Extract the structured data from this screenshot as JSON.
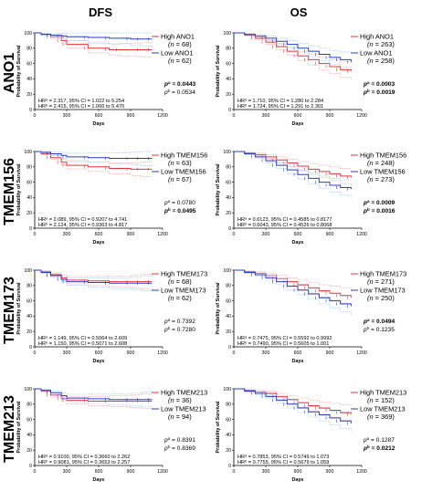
{
  "columns": [
    "DFS",
    "OS"
  ],
  "colors": {
    "high": "#e8333a",
    "low": "#2a3bd1",
    "high_ci": "#f2a0a4",
    "low_ci": "#8ec8f0"
  },
  "chart_data": [
    {
      "type": "line",
      "row": "ANO1",
      "column": "DFS",
      "xlabel": "Days",
      "ylabel": "Probability of Survival",
      "xlim": [
        0,
        1200
      ],
      "ylim": [
        0,
        100
      ],
      "xticks": [
        0,
        300,
        600,
        900,
        1200
      ],
      "yticks": [
        0,
        20,
        40,
        60,
        80,
        100
      ],
      "series": [
        {
          "name": "High ANO1",
          "n": "= 68",
          "x": [
            0,
            60,
            150,
            250,
            300,
            500,
            700,
            800,
            1000,
            1100
          ],
          "y": [
            100,
            98,
            95,
            90,
            85,
            80,
            78,
            78,
            78,
            78
          ]
        },
        {
          "name": "Low ANO1",
          "n": "= 62",
          "x": [
            0,
            60,
            150,
            250,
            300,
            500,
            700,
            900,
            1000,
            1100
          ],
          "y": [
            100,
            98,
            97,
            96,
            95,
            94,
            93,
            92,
            92,
            92
          ]
        }
      ],
      "stats": [
        "HRᵃ = 2.317, 95% CI = 1.022 to 5.254",
        "HRᵇ = 2.415, 95% CI = 1.066 to 5.470"
      ],
      "pa": "= 0.0443",
      "pb": "= 0.0534",
      "pa_bold": true,
      "pb_bold": false
    },
    {
      "type": "line",
      "row": "ANO1",
      "column": "OS",
      "xlabel": "Days",
      "ylabel": "Probability of Survival",
      "xlim": [
        0,
        1200
      ],
      "ylim": [
        0,
        100
      ],
      "xticks": [
        0,
        300,
        600,
        900,
        1200
      ],
      "yticks": [
        0,
        20,
        40,
        60,
        80,
        100
      ],
      "series": [
        {
          "name": "High ANO1",
          "n": "= 263",
          "x": [
            0,
            100,
            200,
            300,
            400,
            500,
            600,
            700,
            800,
            900,
            1000,
            1100
          ],
          "y": [
            100,
            97,
            93,
            88,
            82,
            76,
            70,
            65,
            60,
            56,
            52,
            50
          ]
        },
        {
          "name": "Low ANO1",
          "n": "= 258",
          "x": [
            0,
            100,
            200,
            300,
            400,
            500,
            600,
            700,
            800,
            900,
            1000,
            1100
          ],
          "y": [
            100,
            98,
            96,
            93,
            89,
            85,
            80,
            76,
            72,
            68,
            65,
            62
          ]
        }
      ],
      "stats": [
        "HRᵃ = 1.710, 95% CI = 1.280 to 2.284",
        "HRᵇ = 1.724, 95% CI = 1.291 to 2.301"
      ],
      "pa": "= 0.0003",
      "pb": "= 0.0019",
      "pa_bold": true,
      "pb_bold": true
    },
    {
      "type": "line",
      "row": "TMEM156",
      "column": "DFS",
      "xlabel": "Days",
      "ylabel": "Probability of Survival",
      "xlim": [
        0,
        1200
      ],
      "ylim": [
        0,
        100
      ],
      "xticks": [
        0,
        300,
        600,
        900,
        1200
      ],
      "yticks": [
        0,
        20,
        40,
        60,
        80,
        100
      ],
      "series": [
        {
          "name": "High TMEM156",
          "n": "= 63",
          "x": [
            0,
            60,
            150,
            250,
            300,
            500,
            700,
            900,
            1000,
            1100
          ],
          "y": [
            100,
            97,
            92,
            86,
            82,
            80,
            78,
            77,
            77,
            77
          ]
        },
        {
          "name": "Low TMEM156",
          "n": "= 67",
          "x": [
            0,
            60,
            150,
            250,
            300,
            500,
            700,
            900,
            1000,
            1100
          ],
          "y": [
            100,
            99,
            97,
            95,
            93,
            92,
            91,
            91,
            91,
            91
          ]
        }
      ],
      "stats": [
        "HRᵃ = 2.089, 95% CI = 0.9207 to 4.741",
        "HRᵇ = 2.124, 95% CI = 0.9363 to 4.817"
      ],
      "pa": "= 0.0780",
      "pb": "= 0.0495",
      "pa_bold": false,
      "pb_bold": true
    },
    {
      "type": "line",
      "row": "TMEM156",
      "column": "OS",
      "xlabel": "Days",
      "ylabel": "Probability of Survival",
      "xlim": [
        0,
        1200
      ],
      "ylim": [
        0,
        100
      ],
      "xticks": [
        0,
        300,
        600,
        900,
        1200
      ],
      "yticks": [
        0,
        20,
        40,
        60,
        80,
        100
      ],
      "series": [
        {
          "name": "High TMEM156",
          "n": "= 248",
          "x": [
            0,
            100,
            200,
            300,
            400,
            500,
            600,
            700,
            800,
            900,
            1000,
            1100
          ],
          "y": [
            100,
            98,
            96,
            93,
            89,
            85,
            81,
            77,
            74,
            71,
            68,
            66
          ]
        },
        {
          "name": "Low TMEM156",
          "n": "= 273",
          "x": [
            0,
            100,
            200,
            300,
            400,
            500,
            600,
            700,
            800,
            900,
            1000,
            1100
          ],
          "y": [
            100,
            97,
            93,
            88,
            82,
            76,
            70,
            65,
            60,
            56,
            53,
            51
          ]
        }
      ],
      "stats": [
        "HRᵃ = 0.6123, 95% CI = 0.4585 to 0.8177",
        "HRᵇ = 0.6043, 95% CI = 0.4526 to 0.8068"
      ],
      "pa": "= 0.0009",
      "pb": "= 0.0016",
      "pa_bold": true,
      "pb_bold": true
    },
    {
      "type": "line",
      "row": "TMEM173",
      "column": "DFS",
      "xlabel": "Days",
      "ylabel": "Probability of Survival",
      "xlim": [
        0,
        1200
      ],
      "ylim": [
        0,
        100
      ],
      "xticks": [
        0,
        300,
        600,
        900,
        1200
      ],
      "yticks": [
        0,
        20,
        40,
        60,
        80,
        100
      ],
      "series": [
        {
          "name": "High TMEM173",
          "n": "= 68",
          "x": [
            0,
            60,
            150,
            250,
            300,
            500,
            700,
            900,
            1000,
            1100
          ],
          "y": [
            100,
            98,
            94,
            90,
            87,
            86,
            85,
            85,
            85,
            85
          ]
        },
        {
          "name": "Low TMEM173",
          "n": "= 62",
          "x": [
            0,
            60,
            150,
            250,
            300,
            500,
            700,
            900,
            1000,
            1100
          ],
          "y": [
            100,
            97,
            93,
            88,
            85,
            84,
            83,
            83,
            83,
            83
          ]
        }
      ],
      "stats": [
        "HRᵃ = 1.149, 95% CI = 0.5064 to 2.609",
        "HRᵇ = 1.150, 95% CI = 0.5071 to 2.608"
      ],
      "pa": "= 0.7392",
      "pb": "= 0.7280",
      "pa_bold": false,
      "pb_bold": false
    },
    {
      "type": "line",
      "row": "TMEM173",
      "column": "OS",
      "xlabel": "Days",
      "ylabel": "Probability of Survival",
      "xlim": [
        0,
        1200
      ],
      "ylim": [
        0,
        100
      ],
      "xticks": [
        0,
        300,
        600,
        900,
        1200
      ],
      "yticks": [
        0,
        20,
        40,
        60,
        80,
        100
      ],
      "series": [
        {
          "name": "High TMEM173",
          "n": "= 271",
          "x": [
            0,
            100,
            200,
            300,
            400,
            500,
            600,
            700,
            800,
            900,
            1000,
            1100
          ],
          "y": [
            100,
            98,
            96,
            93,
            89,
            85,
            81,
            77,
            73,
            70,
            67,
            64
          ]
        },
        {
          "name": "Low TMEM173",
          "n": "= 250",
          "x": [
            0,
            100,
            200,
            300,
            400,
            500,
            600,
            700,
            800,
            900,
            1000,
            1100
          ],
          "y": [
            100,
            97,
            94,
            90,
            85,
            79,
            74,
            69,
            64,
            60,
            56,
            53
          ]
        }
      ],
      "stats": [
        "HRᵃ = 0.7475, 95% CI = 0.5592 to 0.9992",
        "HRᵇ = 0.7490, 95% CI = 0.5605 to 1.001"
      ],
      "pa": "= 0.0494",
      "pb": "= 0.1235",
      "pa_bold": true,
      "pb_bold": false
    },
    {
      "type": "line",
      "row": "TMEM213",
      "column": "DFS",
      "xlabel": "Days",
      "ylabel": "Probability of Survival",
      "xlim": [
        0,
        1200
      ],
      "ylim": [
        0,
        100
      ],
      "xticks": [
        0,
        300,
        600,
        900,
        1200
      ],
      "yticks": [
        0,
        20,
        40,
        60,
        80,
        100
      ],
      "series": [
        {
          "name": "High TMEM213",
          "n": "= 36",
          "x": [
            0,
            60,
            150,
            250,
            300,
            500,
            700,
            900,
            1000,
            1100
          ],
          "y": [
            100,
            97,
            92,
            87,
            85,
            84,
            84,
            84,
            84,
            84
          ]
        },
        {
          "name": "Low TMEM213",
          "n": "= 94",
          "x": [
            0,
            60,
            150,
            250,
            300,
            500,
            700,
            900,
            1000,
            1100
          ],
          "y": [
            100,
            98,
            95,
            91,
            88,
            87,
            86,
            86,
            86,
            86
          ]
        }
      ],
      "stats": [
        "HRᵃ = 0.9100, 95% CI = 0.3660 to 2.262",
        "HRᵇ = 0.9081, 95% CI = 0.3653 to 2.257"
      ],
      "pa": "= 0.8391",
      "pb": "= 0.8369",
      "pa_bold": false,
      "pb_bold": false
    },
    {
      "type": "line",
      "row": "TMEM213",
      "column": "OS",
      "xlabel": "Days",
      "ylabel": "Probability of Survival",
      "xlim": [
        0,
        1200
      ],
      "ylim": [
        0,
        100
      ],
      "xticks": [
        0,
        300,
        600,
        900,
        1200
      ],
      "yticks": [
        0,
        20,
        40,
        60,
        80,
        100
      ],
      "series": [
        {
          "name": "High TMEM213",
          "n": "= 152",
          "x": [
            0,
            100,
            200,
            300,
            400,
            500,
            600,
            700,
            800,
            900,
            1000,
            1100
          ],
          "y": [
            100,
            98,
            96,
            94,
            90,
            86,
            82,
            78,
            75,
            72,
            69,
            67
          ]
        },
        {
          "name": "Low TMEM213",
          "n": "= 369",
          "x": [
            0,
            100,
            200,
            300,
            400,
            500,
            600,
            700,
            800,
            900,
            1000,
            1100
          ],
          "y": [
            100,
            97,
            94,
            90,
            85,
            80,
            75,
            70,
            66,
            62,
            58,
            55
          ]
        }
      ],
      "stats": [
        "HRᵃ = 0.7853, 95% CI = 0.5749 to 1.073",
        "HRᵇ = 0.7755, 95% CI = 0.5679 to 1.059"
      ],
      "pa": "= 0.1287",
      "pb": "= 0.0212",
      "pa_bold": false,
      "pb_bold": true
    }
  ]
}
